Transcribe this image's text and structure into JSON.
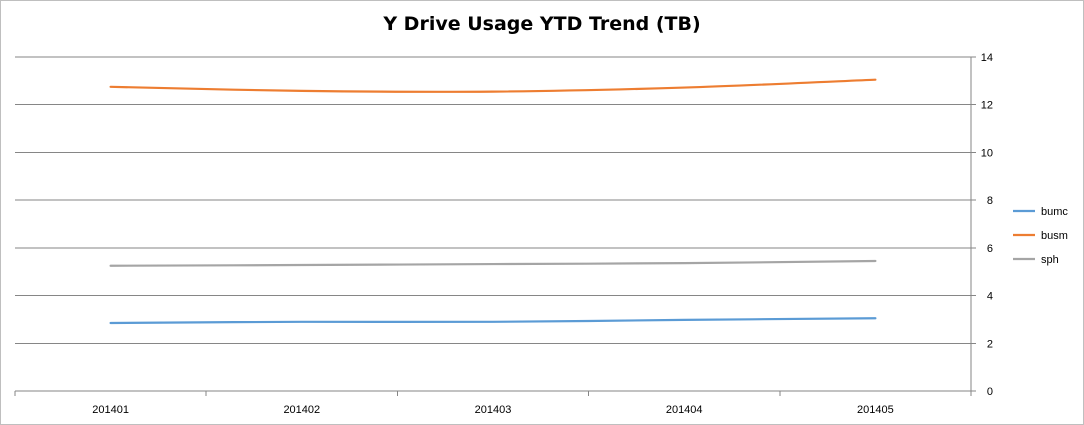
{
  "chart_data": {
    "type": "line",
    "title": "Y Drive Usage YTD Trend (TB)",
    "categories": [
      "201401",
      "201402",
      "201403",
      "201404",
      "201405"
    ],
    "series": [
      {
        "name": "bumc",
        "color": "#5b9bd5",
        "values": [
          2.85,
          2.9,
          2.9,
          2.98,
          3.05
        ]
      },
      {
        "name": "busm",
        "color": "#ed7d31",
        "values": [
          12.75,
          12.58,
          12.55,
          12.72,
          13.05
        ]
      },
      {
        "name": "sph",
        "color": "#a5a5a5",
        "values": [
          5.25,
          5.28,
          5.32,
          5.36,
          5.45
        ]
      }
    ],
    "ylim": [
      0,
      14
    ],
    "yticks": [
      "0",
      "2",
      "4",
      "6",
      "8",
      "10",
      "12",
      "14"
    ],
    "y_axis_side": "right",
    "grid": true,
    "legend_position": "right"
  }
}
